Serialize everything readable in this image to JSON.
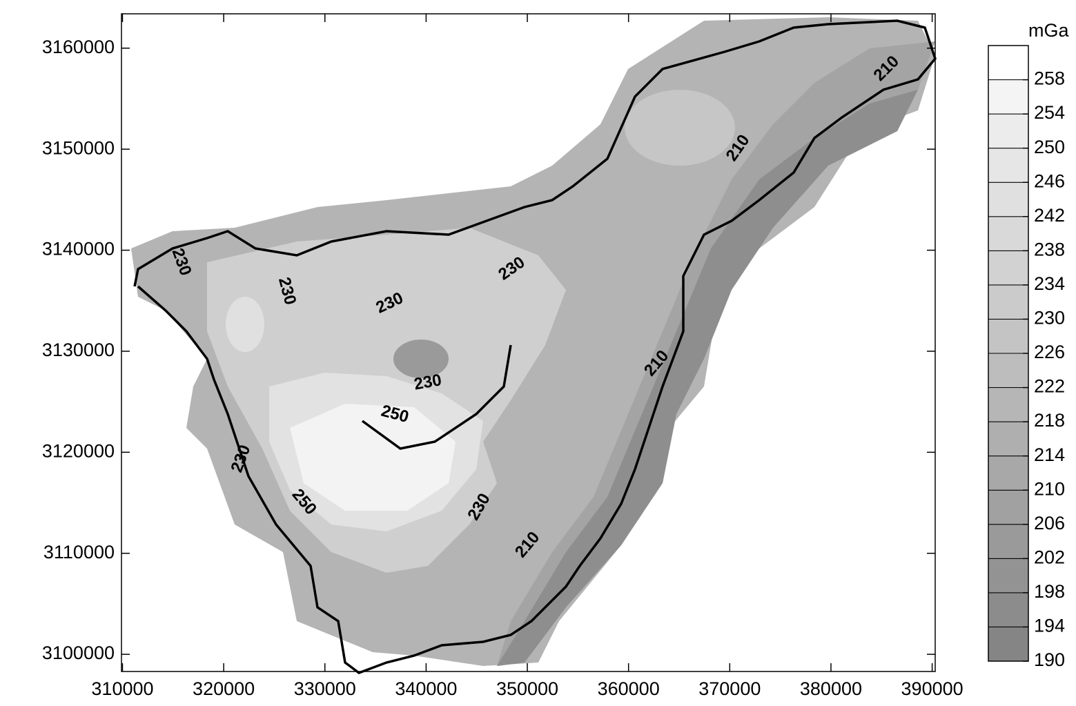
{
  "chart_data": {
    "type": "contour",
    "xlim": [
      309900,
      390300
    ],
    "ylim": [
      3098300,
      3163400
    ],
    "xticks": [
      310000,
      320000,
      330000,
      340000,
      350000,
      360000,
      370000,
      380000,
      390000
    ],
    "yticks": [
      3100000,
      3110000,
      3120000,
      3130000,
      3140000,
      3150000,
      3160000
    ],
    "contour_labels": [
      "230",
      "230",
      "230",
      "230",
      "230",
      "230",
      "230",
      "250",
      "250",
      "210",
      "210",
      "210",
      "210"
    ],
    "colorbar": {
      "label": "mGa",
      "lim": [
        190,
        262
      ],
      "ticks": [
        190,
        194,
        198,
        202,
        206,
        210,
        214,
        218,
        222,
        226,
        230,
        234,
        238,
        242,
        246,
        250,
        254,
        258
      ],
      "colors": [
        "#858585",
        "#8c8c8c",
        "#939393",
        "#9a9a9a",
        "#a1a1a1",
        "#a8a8a8",
        "#afafaf",
        "#b6b6b6",
        "#bdbdbd",
        "#c4c4c4",
        "#cbcbcb",
        "#d2d2d2",
        "#d9d9d9",
        "#e0e0e0",
        "#e6e6e6",
        "#ececec",
        "#f4f4f4",
        "#ffffff"
      ]
    }
  }
}
